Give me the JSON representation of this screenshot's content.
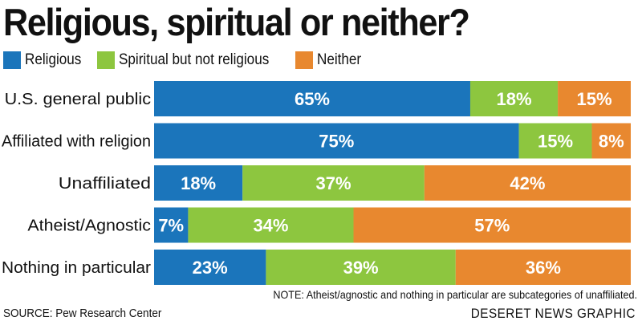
{
  "chart_data": {
    "type": "bar",
    "orientation": "horizontal",
    "stacked": true,
    "title": "Religious, spiritual or neither?",
    "categories": [
      "U.S. general public",
      "Affiliated with religion",
      "Unaffiliated",
      "Atheist/Agnostic",
      "Nothing in particular"
    ],
    "series": [
      {
        "name": "Religious",
        "values": [
          65,
          75,
          18,
          7,
          23
        ],
        "color": "#1b75bb"
      },
      {
        "name": "Spiritual but not religious",
        "values": [
          18,
          15,
          37,
          34,
          39
        ],
        "color": "#8dc63f"
      },
      {
        "name": "Neither",
        "values": [
          15,
          8,
          42,
          57,
          36
        ],
        "color": "#e8882f"
      }
    ],
    "value_suffix": "%",
    "legend_position": "top-left",
    "grid": false
  },
  "note": "NOTE: Atheist/agnostic and nothing in particular are subcategories of unaffiliated.",
  "source": "SOURCE: Pew Research Center",
  "credit": "DESERET NEWS GRAPHIC"
}
